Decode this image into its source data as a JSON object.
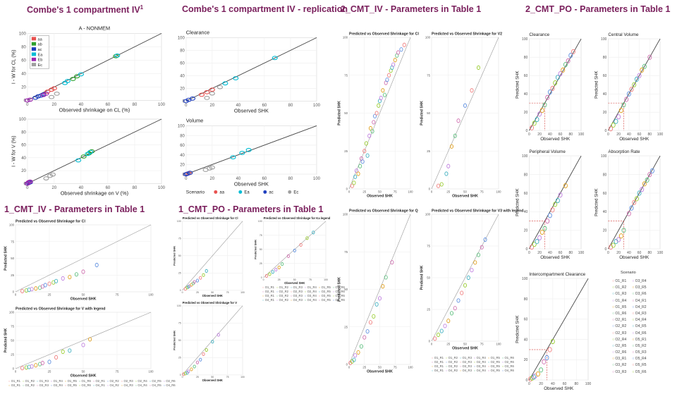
{
  "titles": {
    "t1": "Combe's 1 compartment IV",
    "t1_sup": "1",
    "t2": "Combe's 1 compartment IV - replication",
    "t3": "2_CMT_IV - Parameters in Table 1",
    "t4": "2_CMT_PO - Parameters in Table 1",
    "t5": "1_CMT_IV - Parameters in Table 1",
    "t6": "1_CMT_PO -  Parameters in Table 1"
  },
  "colors": {
    "title": "#7a1f5c",
    "aa": "#e8514f",
    "ab": "#2ca02c",
    "ac": "#1f3fbf",
    "Ea": "#00bcd4",
    "Eb": "#9c27b0",
    "Ec": "#9e9e9e",
    "scatter": [
      "#f08080",
      "#9acd32",
      "#40b0c0",
      "#c080e0",
      "#e0a020",
      "#60c080",
      "#d070b0",
      "#6090e0"
    ]
  },
  "scenario_labels": [
    "O1_R1",
    "O1_R2",
    "O1_R3",
    "O1_R4",
    "O1_R5",
    "O1_R6",
    "O2_R1",
    "O2_R2",
    "O2_R3",
    "O2_R4",
    "O2_R5",
    "O2_R6",
    "O3_R1",
    "O3_R2",
    "O3_R3",
    "O3_R4",
    "O3_R5",
    "O3_R6",
    "O4_R1",
    "O4_R2",
    "O4_R3",
    "O4_R4",
    "O4_R5",
    "O4_R6"
  ],
  "legend_scenario_title": "Scenario",
  "legend_2cmt_po": {
    "title": "Scenario",
    "left": [
      "O1_R1",
      "O1_R2",
      "O1_R3",
      "O1_R4",
      "O1_R5",
      "O1_R6",
      "O2_R1",
      "O2_R2",
      "O2_R3",
      "O2_R4",
      "O2_R5",
      "O2_R6",
      "O3_R1",
      "O3_R2",
      "O3_R3"
    ],
    "right": [
      "O3_R4",
      "O3_R5",
      "O3_R6",
      "O4_R1",
      "O4_R2",
      "O4_R3",
      "O4_R4",
      "O4_R5",
      "O4_R6",
      "O5_R1",
      "O5_R2",
      "O5_R3",
      "O5_R4",
      "O5_R5",
      "O5_R6"
    ]
  },
  "chart_data": [
    {
      "id": "combe_cl",
      "type": "scatter",
      "title": "A - NONMEM",
      "xlabel": "Observed shrinkage on CL (%)",
      "ylabel": "I - W for CL (%)",
      "xlim": [
        0,
        100
      ],
      "ylim": [
        0,
        100
      ],
      "xticks": [
        0,
        20,
        40,
        60,
        80,
        100
      ],
      "yticks": [
        0,
        20,
        40,
        60,
        80,
        100
      ],
      "legend": [
        "aa",
        "ab",
        "ac",
        "Ea",
        "Eb",
        "Ec"
      ],
      "series": [
        {
          "name": "aa",
          "color": "#e8514f",
          "x": [
            15,
            18,
            20
          ],
          "y": [
            13,
            16,
            18
          ]
        },
        {
          "name": "ab",
          "color": "#2ca02c",
          "x": [
            34,
            37,
            66
          ],
          "y": [
            32,
            36,
            66
          ]
        },
        {
          "name": "ac",
          "color": "#1f3fbf",
          "x": [
            6,
            8,
            10,
            12
          ],
          "y": [
            4,
            6,
            7,
            9
          ]
        },
        {
          "name": "Ea",
          "color": "#00bcd4",
          "x": [
            28,
            30,
            40,
            67
          ],
          "y": [
            26,
            29,
            39,
            67
          ]
        },
        {
          "name": "Eb",
          "color": "#9c27b0",
          "x": [
            0,
            2,
            12,
            14
          ],
          "y": [
            0,
            1,
            8,
            10
          ]
        },
        {
          "name": "Ec",
          "color": "#9e9e9e",
          "x": [
            18,
            22
          ],
          "y": [
            5,
            10
          ]
        }
      ]
    },
    {
      "id": "combe_v",
      "type": "scatter",
      "xlabel": "Observed shrinkage on V (%)",
      "ylabel": "I - W for V (%)",
      "xlim": [
        0,
        100
      ],
      "ylim": [
        0,
        100
      ],
      "xticks": [
        0,
        20,
        40,
        60,
        80,
        100
      ],
      "yticks": [
        0,
        20,
        40,
        60,
        80,
        100
      ],
      "series": [
        {
          "name": "aa",
          "color": "#e8514f",
          "x": [
            0,
            1
          ],
          "y": [
            0,
            2
          ]
        },
        {
          "name": "ab",
          "color": "#2ca02c",
          "x": [
            42,
            46,
            48
          ],
          "y": [
            42,
            47,
            50
          ]
        },
        {
          "name": "ac",
          "color": "#1f3fbf",
          "x": [
            0,
            1,
            2
          ],
          "y": [
            0,
            1,
            2
          ]
        },
        {
          "name": "Ea",
          "color": "#00bcd4",
          "x": [
            38,
            45,
            47
          ],
          "y": [
            36,
            46,
            49
          ]
        },
        {
          "name": "Eb",
          "color": "#9c27b0",
          "x": [
            0,
            1,
            2
          ],
          "y": [
            0,
            2,
            3
          ]
        },
        {
          "name": "Ec",
          "color": "#9e9e9e",
          "x": [
            14,
            17,
            19
          ],
          "y": [
            8,
            12,
            14
          ]
        }
      ]
    },
    {
      "id": "repl_cl",
      "type": "scatter",
      "title": "Clearance",
      "xlabel": "Observed SHK",
      "xlim": [
        0,
        100
      ],
      "ylim": [
        0,
        100
      ],
      "xticks": [
        0,
        20,
        40,
        60,
        80,
        100
      ],
      "yticks": [
        0,
        20,
        40,
        60,
        80,
        100
      ],
      "series": [
        {
          "name": "aa",
          "color": "#e8514f",
          "x": [
            12,
            16,
            20
          ],
          "y": [
            10,
            14,
            18
          ]
        },
        {
          "name": "Ea",
          "color": "#00bcd4",
          "x": [
            30,
            38,
            68
          ],
          "y": [
            28,
            36,
            68
          ]
        },
        {
          "name": "ac",
          "color": "#1f3fbf",
          "x": [
            0,
            2,
            5
          ],
          "y": [
            0,
            2,
            4
          ]
        },
        {
          "name": "Ec",
          "color": "#9e9e9e",
          "x": [
            16,
            20,
            26
          ],
          "y": [
            5,
            12,
            22
          ]
        }
      ]
    },
    {
      "id": "repl_v",
      "type": "scatter",
      "title": "Volume",
      "xlabel": "Observed SHK",
      "xlim": [
        0,
        100
      ],
      "ylim": [
        0,
        100
      ],
      "xticks": [
        0,
        20,
        40,
        60,
        80,
        100
      ],
      "yticks": [
        0,
        20,
        40,
        60,
        80,
        100
      ],
      "legend_title": "Scenario",
      "legend": [
        "aa",
        "Ea",
        "ac",
        "Ec"
      ],
      "series": [
        {
          "name": "aa",
          "color": "#e8514f",
          "x": [
            0,
            2
          ],
          "y": [
            0,
            2
          ]
        },
        {
          "name": "Ea",
          "color": "#00bcd4",
          "x": [
            36,
            43,
            48
          ],
          "y": [
            35,
            44,
            50
          ]
        },
        {
          "name": "ac",
          "color": "#1f3fbf",
          "x": [
            0,
            1,
            3
          ],
          "y": [
            0,
            1,
            3
          ]
        },
        {
          "name": "Ec",
          "color": "#9e9e9e",
          "x": [
            15,
            18,
            20
          ],
          "y": [
            9,
            12,
            14
          ]
        }
      ]
    },
    {
      "id": "iv2_cl",
      "type": "scatter",
      "title": "Predicted vs Observed Shrinkage for Cl",
      "xlabel": "Observed SHK",
      "ylabel": "Predicted SHK",
      "xlim": [
        0,
        100
      ],
      "ylim": [
        0,
        100
      ],
      "xticks": [
        0,
        25,
        50,
        75,
        100
      ],
      "yticks": [
        0,
        25,
        50,
        75,
        100
      ],
      "x": [
        5,
        8,
        10,
        12,
        15,
        18,
        20,
        22,
        25,
        28,
        30,
        33,
        35,
        38,
        40,
        42,
        45,
        48,
        50,
        52,
        55,
        58,
        60,
        62,
        65,
        68,
        70,
        72,
        75,
        78,
        80,
        85,
        90
      ],
      "y": [
        2,
        4,
        8,
        12,
        10,
        15,
        20,
        18,
        25,
        30,
        22,
        35,
        40,
        38,
        44,
        48,
        50,
        55,
        58,
        60,
        65,
        62,
        70,
        72,
        75,
        78,
        80,
        82,
        85,
        88,
        90,
        92,
        95
      ]
    },
    {
      "id": "iv2_v2",
      "type": "scatter",
      "title": "Predicted vs Observed Shrinkage for V2",
      "xlabel": "Observed SHK",
      "ylabel": "Predicted SHK",
      "xlim": [
        0,
        100
      ],
      "ylim": [
        0,
        100
      ],
      "xticks": [
        0,
        25,
        50,
        75,
        100
      ],
      "yticks": [
        0,
        25,
        50,
        75,
        100
      ],
      "x": [
        10,
        15,
        22,
        25,
        30,
        35,
        40,
        50,
        60,
        70
      ],
      "y": [
        2,
        3,
        10,
        15,
        28,
        35,
        45,
        55,
        65,
        80
      ]
    },
    {
      "id": "iv2_q",
      "type": "scatter",
      "title": "Predicted vs Observed Shrinkage for Q",
      "xlabel": "Observed SHK",
      "ylabel": "Predicted SHK",
      "xlim": [
        0,
        100
      ],
      "ylim": [
        0,
        100
      ],
      "xticks": [
        0,
        25,
        50,
        75,
        100
      ],
      "yticks": [
        0,
        25,
        50,
        75,
        100
      ],
      "x": [
        2,
        5,
        8,
        10,
        15,
        20,
        25,
        30,
        35,
        40,
        45,
        50,
        55,
        60,
        70
      ],
      "y": [
        1,
        2,
        3,
        6,
        8,
        12,
        18,
        22,
        28,
        32,
        40,
        44,
        52,
        58,
        68
      ]
    },
    {
      "id": "iv2_v3",
      "type": "scatter",
      "title": "Predicted vs Observed Shrinkage for V3 with legend",
      "xlabel": "Observed SHK",
      "ylabel": "Predicted SHK",
      "xlim": [
        0,
        100
      ],
      "ylim": [
        0,
        100
      ],
      "xticks": [
        0,
        25,
        50,
        75,
        100
      ],
      "yticks": [
        0,
        25,
        50,
        75,
        100
      ],
      "x": [
        5,
        10,
        15,
        20,
        25,
        30,
        35,
        40,
        45,
        50,
        55,
        60,
        65,
        70,
        75,
        80
      ],
      "y": [
        2,
        5,
        8,
        12,
        16,
        22,
        26,
        32,
        38,
        44,
        50,
        56,
        62,
        68,
        74,
        80
      ]
    },
    {
      "id": "po2_cl",
      "type": "scatter",
      "title": "Clearance",
      "xlabel": "Observed SHK",
      "ylabel": "Predicted SHK",
      "xlim": [
        0,
        100
      ],
      "ylim": [
        0,
        100
      ],
      "xticks": [
        0,
        20,
        40,
        60,
        80,
        100
      ],
      "yticks": [
        0,
        20,
        40,
        60,
        80,
        100
      ],
      "x": [
        5,
        10,
        15,
        20,
        25,
        30,
        35,
        40,
        45,
        50,
        55,
        60,
        65,
        70,
        75,
        80,
        85
      ],
      "y": [
        3,
        8,
        12,
        18,
        22,
        28,
        36,
        42,
        46,
        52,
        58,
        62,
        66,
        72,
        76,
        82,
        86
      ]
    },
    {
      "id": "po2_vc",
      "type": "scatter",
      "title": "Central Volume",
      "xlabel": "Observed SHK",
      "ylabel": "Predicted SHK",
      "xlim": [
        0,
        100
      ],
      "ylim": [
        0,
        100
      ],
      "xticks": [
        0,
        20,
        40,
        60,
        80,
        100
      ],
      "yticks": [
        0,
        20,
        40,
        60,
        80,
        100
      ],
      "x": [
        5,
        10,
        15,
        20,
        25,
        30,
        35,
        40,
        45,
        50,
        55,
        60,
        65,
        70,
        80
      ],
      "y": [
        2,
        6,
        10,
        15,
        22,
        28,
        34,
        40,
        45,
        50,
        56,
        60,
        66,
        70,
        80
      ]
    },
    {
      "id": "po2_vp",
      "type": "scatter",
      "title": "Peripheral Volume",
      "xlabel": "Observed SHK",
      "ylabel": "Predicted SHK",
      "xlim": [
        0,
        100
      ],
      "ylim": [
        0,
        100
      ],
      "xticks": [
        0,
        20,
        40,
        60,
        80,
        100
      ],
      "yticks": [
        0,
        20,
        40,
        60,
        80,
        100
      ],
      "x": [
        5,
        10,
        15,
        20,
        25,
        30,
        35,
        40,
        45,
        50,
        55,
        60,
        70
      ],
      "y": [
        2,
        5,
        8,
        12,
        18,
        22,
        30,
        36,
        42,
        48,
        52,
        58,
        68
      ]
    },
    {
      "id": "po2_ka",
      "type": "scatter",
      "title": "Absorption Rate",
      "xlabel": "Observed SHK",
      "ylabel": "Predicted SHK",
      "xlim": [
        0,
        100
      ],
      "ylim": [
        0,
        100
      ],
      "xticks": [
        0,
        20,
        40,
        60,
        80,
        100
      ],
      "yticks": [
        0,
        20,
        40,
        60,
        80,
        100
      ],
      "x": [
        5,
        10,
        15,
        20,
        25,
        30,
        40,
        45,
        50,
        55,
        60,
        65,
        70,
        75,
        80,
        85
      ],
      "y": [
        2,
        4,
        8,
        10,
        14,
        20,
        38,
        44,
        50,
        54,
        60,
        64,
        70,
        74,
        80,
        84
      ]
    },
    {
      "id": "po2_q",
      "type": "scatter",
      "title": "Intercompartment Clearance",
      "xlabel": "Observed SHK",
      "ylabel": "Predicted SHK",
      "xlim": [
        0,
        100
      ],
      "ylim": [
        0,
        100
      ],
      "xticks": [
        0,
        20,
        40,
        60,
        80,
        100
      ],
      "yticks": [
        0,
        20,
        40,
        60,
        80,
        100
      ],
      "x": [
        2,
        5,
        8,
        10,
        15,
        20,
        25,
        30,
        35,
        40
      ],
      "y": [
        1,
        2,
        3,
        4,
        6,
        10,
        18,
        22,
        30,
        38
      ]
    },
    {
      "id": "iv1_cl",
      "type": "scatter",
      "title": "Predicted vs Observed Shrinkage for Cl",
      "xlabel": "Observed SHK",
      "ylabel": "Predicted SHK",
      "xlim": [
        0,
        100
      ],
      "ylim": [
        0,
        100
      ],
      "xticks": [
        0,
        25,
        50,
        75,
        100
      ],
      "yticks": [
        0,
        25,
        50,
        75,
        100
      ],
      "x": [
        5,
        8,
        10,
        12,
        15,
        18,
        20,
        22,
        25,
        28,
        30,
        35,
        40,
        45,
        50,
        60
      ],
      "y": [
        1,
        2,
        3,
        4,
        5,
        6,
        8,
        10,
        12,
        14,
        16,
        20,
        22,
        26,
        30,
        40
      ]
    },
    {
      "id": "iv1_v",
      "type": "scatter",
      "title": "Predicted vs Observed Shrinkage for V with legend",
      "xlabel": "Observed SHK",
      "ylabel": "Predicted SHK",
      "xlim": [
        0,
        100
      ],
      "ylim": [
        0,
        100
      ],
      "xticks": [
        0,
        25,
        50,
        75,
        100
      ],
      "yticks": [
        0,
        25,
        50,
        75,
        100
      ],
      "x": [
        5,
        8,
        10,
        12,
        15,
        18,
        20,
        25,
        30,
        35,
        40,
        50,
        55
      ],
      "y": [
        1,
        2,
        3,
        4,
        6,
        8,
        10,
        12,
        20,
        30,
        32,
        42,
        52
      ]
    },
    {
      "id": "po1_cl",
      "type": "scatter",
      "title": "Predicted vs Observed Shrinkage for Cl",
      "xlabel": "Observed SHK",
      "ylabel": "Predicted SHK",
      "xlim": [
        0,
        100
      ],
      "ylim": [
        0,
        100
      ],
      "xticks": [
        0,
        25,
        50,
        75,
        100
      ],
      "yticks": [
        0,
        25,
        50,
        75,
        100
      ],
      "x": [
        5,
        8,
        10,
        12,
        15,
        18,
        20,
        25,
        30,
        35,
        40
      ],
      "y": [
        2,
        4,
        5,
        6,
        8,
        10,
        12,
        14,
        18,
        22,
        28
      ]
    },
    {
      "id": "po1_ka",
      "type": "scatter",
      "title": "Predicted vs Observed Shrinkage for Ka legend",
      "xlabel": "Observed SHK",
      "ylabel": "Predicted SHK",
      "xlim": [
        0,
        100
      ],
      "ylim": [
        0,
        100
      ],
      "xticks": [
        0,
        25,
        50,
        75,
        100
      ],
      "yticks": [
        0,
        25,
        50,
        75,
        100
      ],
      "x": [
        5,
        10,
        15,
        20,
        25,
        30,
        40,
        50,
        60,
        70,
        80
      ],
      "y": [
        3,
        6,
        10,
        14,
        18,
        24,
        38,
        48,
        58,
        70,
        80
      ]
    },
    {
      "id": "po1_v",
      "type": "scatter",
      "title": "Predicted vs Observed Shrinkage for V",
      "xlabel": "Observed SHK",
      "ylabel": "Predicted SHK",
      "xlim": [
        0,
        100
      ],
      "ylim": [
        0,
        100
      ],
      "xticks": [
        0,
        25,
        50,
        75,
        100
      ],
      "yticks": [
        0,
        25,
        50,
        75,
        100
      ],
      "x": [
        2,
        5,
        8,
        10,
        15,
        20,
        25,
        30,
        35,
        40,
        50,
        60
      ],
      "y": [
        1,
        2,
        3,
        5,
        8,
        12,
        18,
        22,
        30,
        36,
        48,
        58
      ]
    }
  ]
}
